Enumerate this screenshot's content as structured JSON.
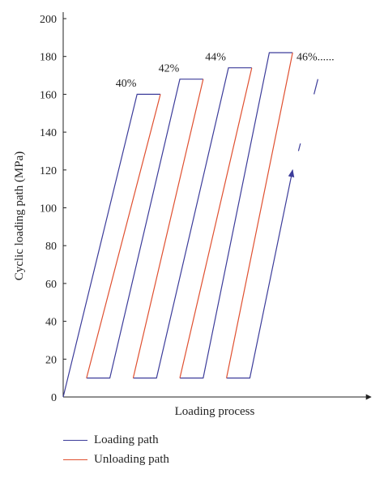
{
  "chart_data": {
    "type": "line",
    "title": "",
    "xlabel": "Loading process",
    "ylabel": "Cyclic loading path (MPa)",
    "ylim": [
      0,
      200
    ],
    "yticks": [
      0,
      20,
      40,
      60,
      80,
      100,
      120,
      140,
      160,
      180,
      200
    ],
    "grid": false,
    "legend_position": "bottom-left",
    "series": [
      {
        "name": "Loading path",
        "color": "#3c3c9a",
        "segments": [
          [
            [
              0,
              0
            ],
            [
              38,
              160
            ],
            [
              50,
              160
            ]
          ],
          [
            [
              12,
              10
            ],
            [
              24,
              10
            ],
            [
              60,
              168
            ],
            [
              72,
              168
            ]
          ],
          [
            [
              36,
              10
            ],
            [
              48,
              10
            ],
            [
              85,
              174
            ],
            [
              97,
              174
            ]
          ],
          [
            [
              60,
              10
            ],
            [
              72,
              10
            ],
            [
              106,
              182
            ],
            [
              118,
              182
            ]
          ],
          [
            [
              84,
              10
            ],
            [
              96,
              10
            ],
            [
              118,
              120
            ]
          ],
          [
            [
              121,
              130
            ],
            [
              122,
              134
            ]
          ],
          [
            [
              129,
              160
            ],
            [
              131,
              168
            ]
          ]
        ]
      },
      {
        "name": "Unloading path",
        "color": "#e05030",
        "segments": [
          [
            [
              50,
              160
            ],
            [
              12,
              10
            ]
          ],
          [
            [
              72,
              168
            ],
            [
              36,
              10
            ]
          ],
          [
            [
              97,
              174
            ],
            [
              60,
              10
            ]
          ],
          [
            [
              118,
              182
            ],
            [
              84,
              10
            ]
          ]
        ]
      }
    ],
    "annotations": [
      {
        "text": "40%",
        "x": 27,
        "y": 164
      },
      {
        "text": "42%",
        "x": 49,
        "y": 172
      },
      {
        "text": "44%",
        "x": 73,
        "y": 178
      },
      {
        "text": "46%......",
        "x": 120,
        "y": 178
      }
    ]
  }
}
